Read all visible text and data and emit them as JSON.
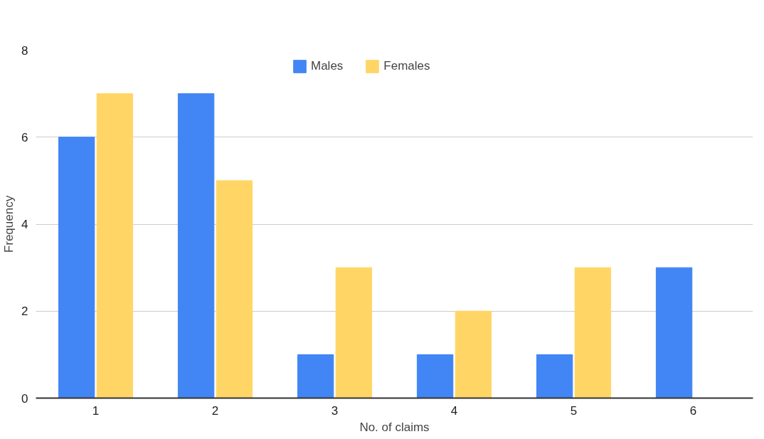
{
  "chart_data": {
    "type": "bar",
    "xlabel": "No. of claims",
    "ylabel": "Frequency",
    "categories": [
      "1",
      "2",
      "3",
      "4",
      "5",
      "6"
    ],
    "series": [
      {
        "name": "Males",
        "color": "#4285f4",
        "values": [
          6,
          7,
          1,
          1,
          1,
          3
        ]
      },
      {
        "name": "Females",
        "color": "#ffd666",
        "values": [
          7,
          5,
          3,
          2,
          3,
          null
        ]
      }
    ],
    "ylim": [
      0,
      8
    ],
    "yticks": [
      0,
      2,
      4,
      6,
      8
    ],
    "grid": "y",
    "legend": "top"
  }
}
